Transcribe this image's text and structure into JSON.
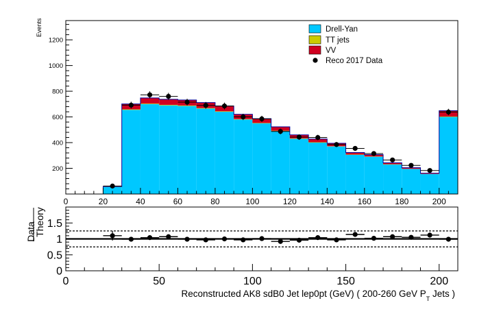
{
  "chart_data": [
    {
      "type": "bar",
      "stacked": true,
      "ylabel": "Events",
      "xlim": [
        0,
        210
      ],
      "ylim": [
        0,
        1350
      ],
      "x_ticks": [
        0,
        20,
        40,
        60,
        80,
        100,
        120,
        140,
        160,
        180,
        200
      ],
      "y_ticks": [
        200,
        400,
        600,
        800,
        1000,
        1200
      ],
      "bin_edges": [
        0,
        10,
        20,
        30,
        40,
        50,
        60,
        70,
        80,
        90,
        100,
        110,
        120,
        130,
        140,
        150,
        160,
        170,
        180,
        190,
        200,
        210
      ],
      "legend_position": "top-right",
      "series": [
        {
          "name": "Drell-Yan",
          "color": "#00c8ff",
          "values": [
            0,
            0,
            55,
            655,
            700,
            690,
            685,
            665,
            640,
            580,
            550,
            490,
            430,
            400,
            370,
            305,
            290,
            230,
            195,
            155,
            600
          ]
        },
        {
          "name": "TT jets",
          "color": "#cccc00",
          "values": [
            0,
            0,
            1,
            4,
            4,
            4,
            4,
            4,
            4,
            3,
            3,
            3,
            3,
            3,
            2,
            2,
            2,
            2,
            1,
            1,
            3
          ]
        },
        {
          "name": "VV",
          "color": "#d00020",
          "values": [
            0,
            0,
            2,
            42,
            44,
            43,
            43,
            43,
            41,
            37,
            33,
            30,
            27,
            25,
            23,
            16,
            14,
            11,
            9,
            6,
            45
          ]
        }
      ],
      "data": {
        "name": "Reco 2017 Data",
        "x": [
          25,
          35,
          45,
          55,
          65,
          75,
          85,
          95,
          105,
          115,
          125,
          135,
          145,
          155,
          165,
          175,
          185,
          195,
          205
        ],
        "y": [
          62,
          692,
          772,
          760,
          715,
          690,
          685,
          600,
          585,
          487,
          443,
          440,
          385,
          355,
          315,
          265,
          223,
          183,
          638
        ]
      }
    },
    {
      "type": "scatter",
      "xlabel": "Reconstructed AK8 sdB0 Jet lep0pt (GeV) ( 200-260 GeV P",
      "xlabel_sub": "T",
      "xlabel_suffix": " Jets  )",
      "ylabel_top": "Data",
      "ylabel_bottom": "Theory",
      "xlim": [
        0,
        210
      ],
      "ylim": [
        0,
        2
      ],
      "x_ticks": [
        0,
        50,
        100,
        150,
        200
      ],
      "y_ticks": [
        0,
        0.5,
        1,
        1.5
      ],
      "reference_lines": [
        0.75,
        1,
        1.25
      ],
      "ratio": {
        "x": [
          25,
          35,
          45,
          55,
          65,
          75,
          85,
          95,
          105,
          115,
          125,
          135,
          145,
          155,
          165,
          175,
          185,
          195,
          205
        ],
        "y": [
          1.1,
          0.99,
          1.04,
          1.07,
          0.99,
          0.97,
          1.0,
          0.97,
          1.01,
          0.92,
          0.96,
          1.04,
          0.97,
          1.14,
          1.02,
          1.07,
          1.05,
          1.12,
          0.99
        ],
        "yerr": [
          0.15,
          0.04,
          0.04,
          0.04,
          0.04,
          0.04,
          0.04,
          0.04,
          0.04,
          0.05,
          0.05,
          0.05,
          0.05,
          0.06,
          0.06,
          0.07,
          0.07,
          0.08,
          0.04
        ]
      }
    }
  ]
}
